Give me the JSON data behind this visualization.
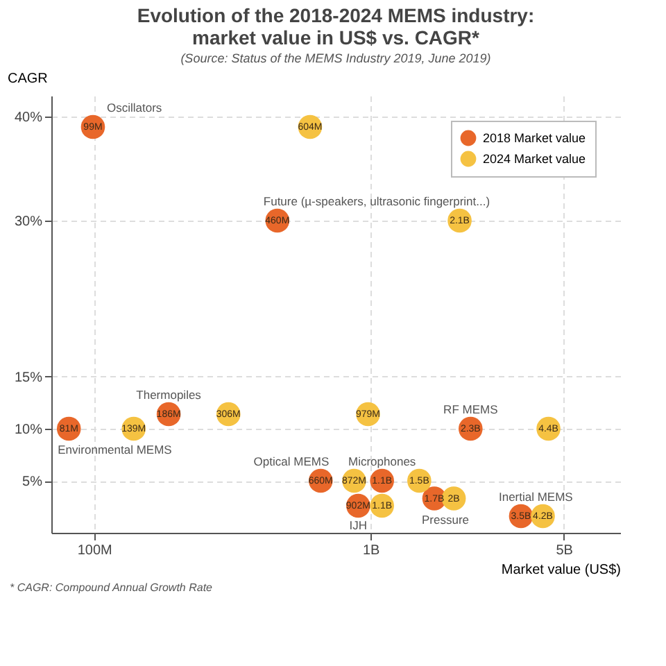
{
  "chart_data": {
    "type": "scatter",
    "title": "Evolution of the 2018-2024 MEMS industry:\nmarket value in US$ vs. CAGR*",
    "subtitle": "(Source: Status of the MEMS Industry 2019, June 2019)",
    "xlabel": "Market value (US$)",
    "ylabel": "CAGR",
    "log": "x",
    "xlim": [
      70000000,
      8000000000
    ],
    "xticks": [
      {
        "value": 100000000,
        "label": "100M"
      },
      {
        "value": 1000000000,
        "label": "1B"
      },
      {
        "value": 5000000000,
        "label": "5B"
      }
    ],
    "ylim": [
      0,
      42
    ],
    "yticks": [
      {
        "value": 5,
        "label": "5%"
      },
      {
        "value": 10,
        "label": "10%"
      },
      {
        "value": 15,
        "label": "15%"
      },
      {
        "value": 30,
        "label": "30%"
      },
      {
        "value": 40,
        "label": "40%"
      }
    ],
    "grid": true,
    "legend": "top right",
    "marker": "circle",
    "series": [
      {
        "name": "2018 Market value",
        "color": "#e8672a",
        "x": [
          99000000,
          81000000,
          460000000,
          186000000,
          660000000,
          902000000,
          1100000000,
          1700000000,
          3500000000,
          2300000000
        ],
        "values": [
          39,
          10,
          30,
          11.4,
          5,
          2.6,
          5,
          3.3,
          1.6,
          10
        ]
      },
      {
        "name": "2024 Market value",
        "color": "#f5c242",
        "x": [
          604000000,
          139000000,
          2100000000,
          306000000,
          979000000,
          872000000,
          1100000000,
          1500000000,
          2000000000,
          4200000000,
          4400000000
        ],
        "values": [
          39,
          10,
          30,
          11.4,
          11.4,
          5,
          2.6,
          5,
          3.3,
          1.6,
          10
        ]
      }
    ],
    "annotations": [
      "Oscillators",
      "Environmental MEMS",
      "Future (µ-speakers, ultrasonic fingerprint...)",
      "Thermopiles",
      "Optical MEMS",
      "IJH",
      "Microphones",
      "Pressure",
      "Inertial MEMS",
      "RF MEMS",
      "* CAGR: Compound Annual Growth Rate",
      {
        "text": "99M",
        "x": 99000000,
        "y": 39
      },
      {
        "text": "81M",
        "x": 81000000,
        "y": 10
      },
      {
        "text": "460M",
        "x": 460000000,
        "y": 30
      },
      {
        "text": "186M",
        "x": 186000000,
        "y": 11.4
      },
      {
        "text": "660M",
        "x": 660000000,
        "y": 5
      },
      {
        "text": "902M",
        "x": 902000000,
        "y": 2.6
      },
      {
        "text": "1.1B",
        "x": 1100000000,
        "y": 5
      },
      {
        "text": "1.7B",
        "x": 1700000000,
        "y": 3.3
      },
      {
        "text": "3.5B",
        "x": 3500000000,
        "y": 1.6
      },
      {
        "text": "2.3B",
        "x": 2300000000,
        "y": 10
      },
      {
        "text": "604M",
        "x": 604000000,
        "y": 39
      },
      {
        "text": "139M",
        "x": 139000000,
        "y": 10
      },
      {
        "text": "2.1B",
        "x": 2100000000,
        "y": 30
      },
      {
        "text": "306M",
        "x": 306000000,
        "y": 11.4
      },
      {
        "text": "979M",
        "x": 979000000,
        "y": 11.4
      },
      {
        "text": "872M",
        "x": 872000000,
        "y": 5
      },
      {
        "text": "1.1B",
        "x": 1100000000,
        "y": 2.6
      },
      {
        "text": "1.5B",
        "x": 1500000000,
        "y": 5
      },
      {
        "text": "2B",
        "x": 2000000000,
        "y": 3.3
      },
      {
        "text": "4.2B",
        "x": 4200000000,
        "y": 1.6
      },
      {
        "text": "4.4B",
        "x": 4400000000,
        "y": 10
      }
    ]
  }
}
